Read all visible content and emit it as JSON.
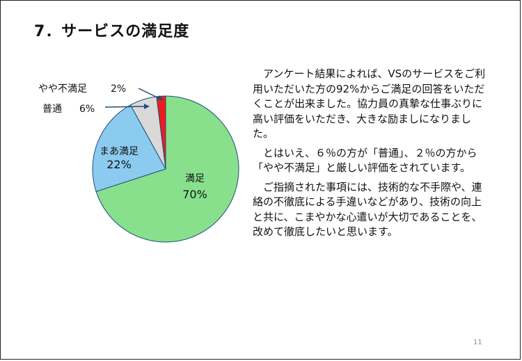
{
  "slide": {
    "title": "7．サービスの満足度",
    "page_number": "11"
  },
  "body": {
    "paragraphs": [
      "アンケート結果によれば、VSのサービスをご利用いただいた方の92%からご満足の回答をいただくことが出来ました。協力員の真摯な仕事ぶりに高い評価をいただき、大きな励ましになりました。",
      "とはいえ、６％の方が「普通」、２％の方から「やや不満足」と厳しい評価をされています。",
      "ご指摘された事項には、技術的な不手際や、連絡の不徹底による手違いなどがあり、技術の向上と共に、こまやかな心遣いが大切であることを、改めて徹底したいと思います。"
    ]
  },
  "chart_data": {
    "type": "pie",
    "categories": [
      "やや不満足",
      "普通",
      "まあ満足",
      "満足"
    ],
    "values": [
      2,
      6,
      22,
      70
    ],
    "value_labels": [
      "2%",
      "6%",
      "22%",
      "70%"
    ],
    "colors": [
      "#ee1c1c",
      "#d9d9d9",
      "#8ccbf0",
      "#88e08c"
    ],
    "start_angle_deg": 0,
    "direction": "counterclockwise",
    "legend": "none"
  }
}
